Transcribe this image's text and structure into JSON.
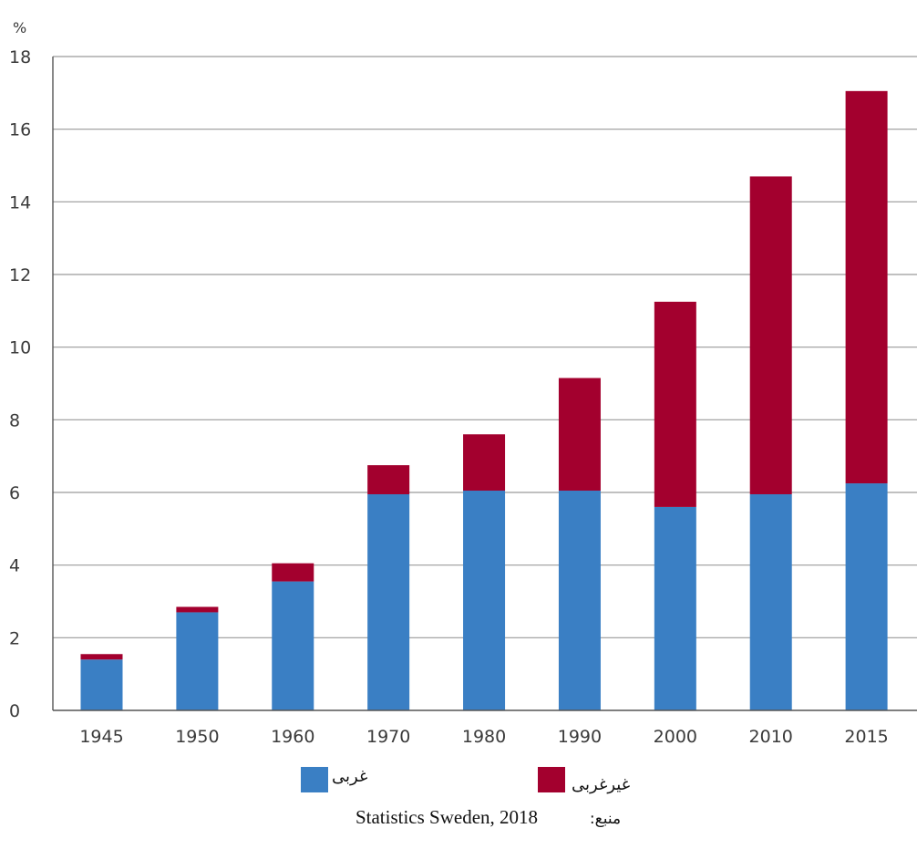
{
  "chart_data": {
    "type": "bar",
    "stacked": true,
    "categories": [
      "1945",
      "1950",
      "1960",
      "1970",
      "1980",
      "1990",
      "2000",
      "2010",
      "2015"
    ],
    "series": [
      {
        "name": "غربی",
        "color": "#3a7fc4",
        "values": [
          1.4,
          2.7,
          3.55,
          5.95,
          6.05,
          6.05,
          5.6,
          5.95,
          6.25
        ]
      },
      {
        "name": "غیرغربی",
        "color": "#a3002e",
        "values": [
          0.15,
          0.15,
          0.5,
          0.8,
          1.55,
          3.1,
          5.65,
          8.75,
          10.8
        ]
      }
    ],
    "ylabel": "%",
    "ylim": [
      0,
      18
    ],
    "yticks": [
      0,
      2,
      4,
      6,
      8,
      10,
      12,
      14,
      16,
      18
    ],
    "grid": true,
    "legend_position": "bottom",
    "source_prefix": "منبع:",
    "source": "Statistics Sweden, 2018"
  }
}
